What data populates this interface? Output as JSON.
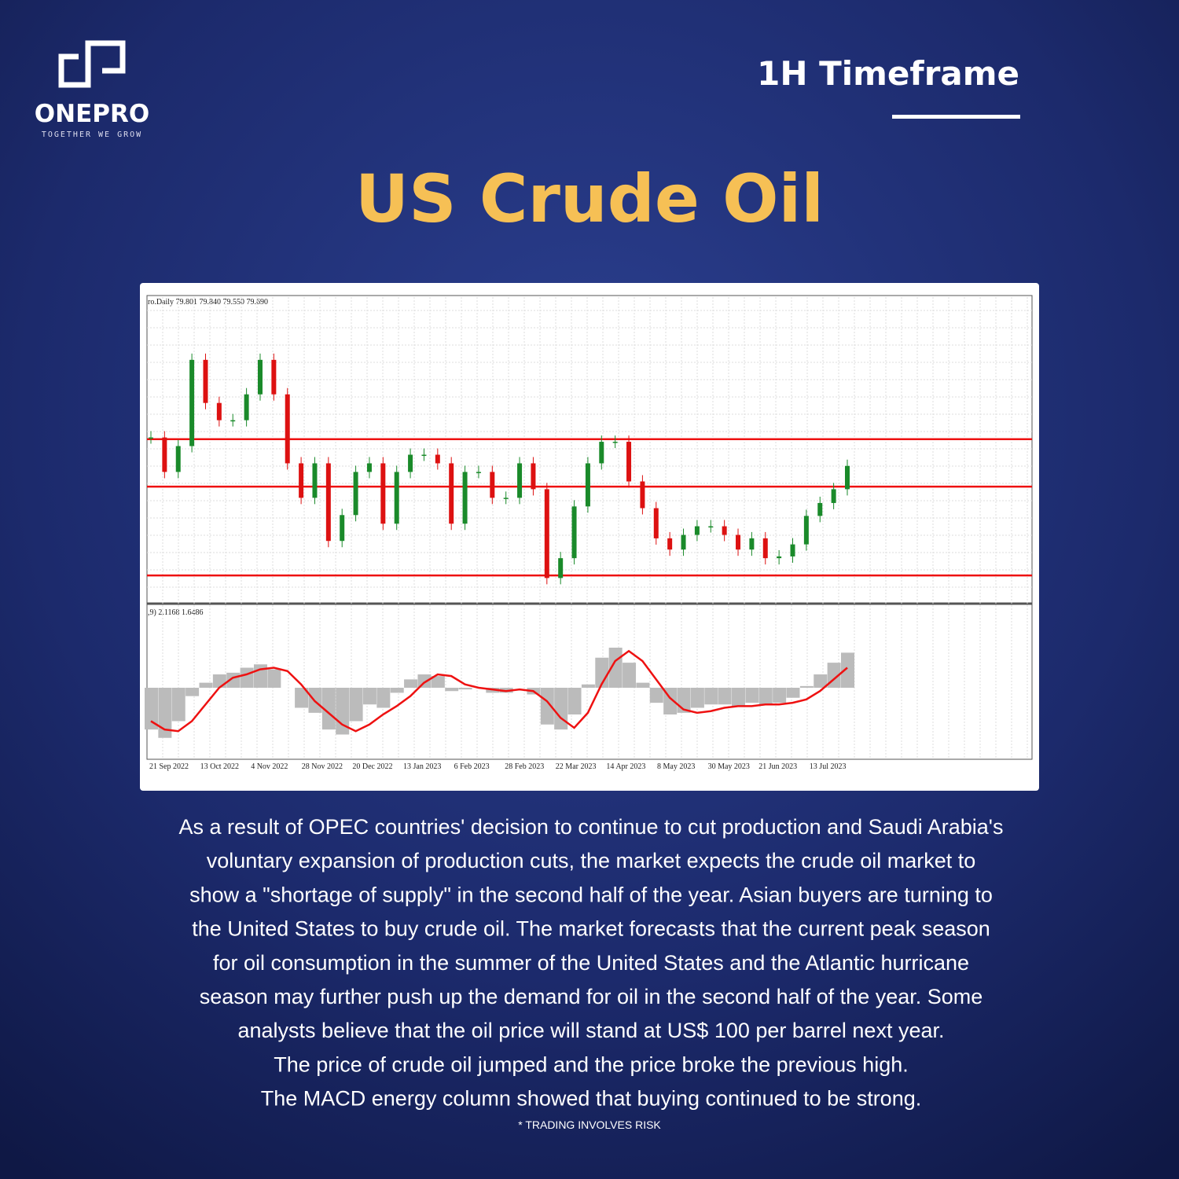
{
  "brand": {
    "name": "ONEPRO",
    "tagline": "TOGETHER WE GROW"
  },
  "timeframe": "1H Timeframe",
  "title": "US Crude Oil",
  "chart": {
    "header": "ro.Daily  79.801 79.840 79.550 79.690",
    "macd_header": ",9) 2.1168 1.6486",
    "x_labels": [
      "21 Sep 2022",
      "13 Oct 2022",
      "4 Nov 2022",
      "28 Nov 2022",
      "20 Dec 2022",
      "13 Jan 2023",
      "6 Feb 2023",
      "28 Feb 2023",
      "22 Mar 2023",
      "14 Apr 2023",
      "8 May 2023",
      "30 May 2023",
      "21 Jun 2023",
      "13 Jul 2023"
    ],
    "ylim": [
      64,
      98
    ],
    "levels": [
      82.8,
      77.3,
      67.0
    ],
    "closes": [
      83,
      79,
      82,
      92,
      87,
      85,
      85,
      88,
      92,
      88,
      80,
      76,
      80,
      71,
      74,
      79,
      80,
      73,
      79,
      81,
      81,
      80,
      73,
      79,
      79,
      76,
      76,
      80,
      77,
      66.7,
      69,
      75,
      80,
      82.5,
      82.5,
      77.9,
      74.8,
      71.3,
      70,
      71.7,
      72.7,
      72.7,
      71.7,
      70,
      71.3,
      69,
      69.2,
      70.6,
      73.9,
      75.4,
      77,
      79.7
    ],
    "macd_ylim": [
      -4,
      4
    ],
    "macd_hist": [
      -2.5,
      -3,
      -2,
      -0.5,
      0.3,
      0.8,
      0.9,
      1.2,
      1.4,
      1.1,
      0,
      -1.2,
      -1.5,
      -2.5,
      -2.8,
      -2,
      -1,
      -1.2,
      -0.3,
      0.5,
      0.8,
      0.7,
      -0.2,
      -0.1,
      0,
      -0.3,
      -0.3,
      0,
      -0.4,
      -2.2,
      -2.5,
      -1.6,
      0.2,
      1.8,
      2.4,
      1.5,
      0.3,
      -0.9,
      -1.6,
      -1.5,
      -1.2,
      -1,
      -1,
      -1.1,
      -0.9,
      -1,
      -0.9,
      -0.6,
      0.1,
      0.8,
      1.5,
      2.1
    ],
    "macd_signal": [
      -2.0,
      -2.5,
      -2.6,
      -2.0,
      -1.0,
      0,
      0.6,
      0.8,
      1.1,
      1.2,
      1.0,
      0.2,
      -0.8,
      -1.5,
      -2.2,
      -2.6,
      -2.2,
      -1.6,
      -1.1,
      -0.5,
      0.3,
      0.8,
      0.7,
      0.2,
      0,
      -0.1,
      -0.2,
      -0.1,
      -0.2,
      -0.8,
      -1.8,
      -2.4,
      -1.5,
      0.2,
      1.6,
      2.2,
      1.6,
      0.5,
      -0.6,
      -1.3,
      -1.5,
      -1.4,
      -1.2,
      -1.1,
      -1.1,
      -1.0,
      -1.0,
      -0.9,
      -0.7,
      -0.2,
      0.5,
      1.2
    ]
  },
  "body": [
    "As a result of OPEC countries' decision to continue to cut production and Saudi Arabia's",
    "voluntary expansion of production cuts, the market expects the crude oil market to",
    "show a \"shortage of supply\" in the second half of the year. Asian buyers are turning to",
    "the United States to buy crude oil. The market forecasts that the current peak season",
    "for oil consumption in the summer of the United States and the Atlantic hurricane",
    "season may further push up the demand for oil in the second half of the year. Some",
    "analysts believe that the oil price will stand at US$ 100 per barrel next year.",
    "The price of crude oil jumped and the price broke the previous high.",
    "The MACD energy column showed that buying continued to be strong."
  ],
  "disclaimer": "* TRADING INVOLVES RISK"
}
